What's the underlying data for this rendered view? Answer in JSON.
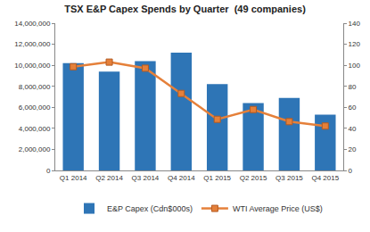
{
  "chart_data": {
    "type": "bar",
    "title": "TSX E&P Capex Spends by Quarter  (49 companies)",
    "categories": [
      "Q1 2014",
      "Q2 2014",
      "Q3 2014",
      "Q4 2014",
      "Q1 2015",
      "Q2 2015",
      "Q3 2015",
      "Q4 2015"
    ],
    "series": [
      {
        "name": "E&P Capex (Cdn$000s)",
        "type": "bar",
        "color": "#2e75b6",
        "values": [
          10200000,
          9400000,
          10400000,
          11200000,
          8200000,
          6400000,
          6900000,
          5300000
        ]
      },
      {
        "name": "WTI Average Price (US$)",
        "type": "line",
        "axis": "y2",
        "color": "#e5803a",
        "marker": "square",
        "values": [
          98.6,
          103.0,
          97.2,
          73.2,
          48.6,
          57.9,
          46.4,
          42.2
        ]
      }
    ],
    "ylim": [
      0,
      14000000
    ],
    "yticks": [
      0,
      {
        "value": 2000000,
        "label": "2,000,000"
      },
      {
        "value": 4000000,
        "label": "4,000,000"
      },
      {
        "value": 6000000,
        "label": "6,000,000"
      },
      {
        "value": 8000000,
        "label": "8,000,000"
      },
      {
        "value": 10000000,
        "label": "10,000,000"
      },
      {
        "value": 12000000,
        "label": "12,000,000"
      },
      {
        "value": 14000000,
        "label": "14,000,000"
      }
    ],
    "y2lim": [
      0,
      140
    ],
    "y2ticks": [
      0,
      20,
      40,
      60,
      80,
      100,
      120,
      140
    ],
    "grid": false,
    "legend": "bottom"
  }
}
